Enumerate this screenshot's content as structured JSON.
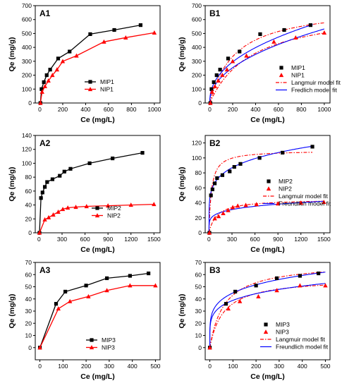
{
  "chart_data": [
    {
      "type": "line",
      "panel_label": "A1",
      "xlabel": "Ce (mg/L)",
      "ylabel": "Qe (mg/g)",
      "xlim": [
        -40,
        1050
      ],
      "ylim": [
        0,
        700
      ],
      "xticks": [
        0,
        200,
        400,
        600,
        800,
        1000
      ],
      "yticks": [
        0,
        100,
        200,
        300,
        400,
        500,
        600,
        700
      ],
      "series": [
        {
          "name": "MIP1",
          "color": "#000000",
          "marker": "square",
          "x": [
            5,
            15,
            35,
            60,
            90,
            160,
            260,
            440,
            650,
            880
          ],
          "y": [
            0,
            100,
            150,
            200,
            240,
            320,
            370,
            495,
            525,
            560
          ]
        },
        {
          "name": "NIP1",
          "color": "#ff0000",
          "marker": "triangle",
          "x": [
            5,
            20,
            45,
            75,
            110,
            150,
            200,
            320,
            560,
            750,
            1000
          ],
          "y": [
            0,
            80,
            120,
            160,
            200,
            240,
            300,
            340,
            440,
            470,
            505
          ]
        }
      ],
      "legend": {
        "position": "right"
      }
    },
    {
      "type": "scatter",
      "panel_label": "B1",
      "xlabel": "Ce (mg/L)",
      "ylabel": "Qe (mg/g)",
      "xlim": [
        -40,
        1050
      ],
      "ylim": [
        0,
        700
      ],
      "xticks": [
        0,
        200,
        400,
        600,
        800,
        1000
      ],
      "yticks": [
        0,
        100,
        200,
        300,
        400,
        500,
        600,
        700
      ],
      "series": [
        {
          "name": "MIP1",
          "color": "#000000",
          "marker": "square",
          "x": [
            5,
            15,
            35,
            60,
            90,
            160,
            260,
            440,
            650,
            880
          ],
          "y": [
            0,
            100,
            150,
            200,
            240,
            320,
            370,
            495,
            525,
            560
          ]
        },
        {
          "name": "NIP1",
          "color": "#ff0000",
          "marker": "triangle",
          "x": [
            5,
            20,
            45,
            75,
            110,
            150,
            200,
            320,
            560,
            750,
            1000
          ],
          "y": [
            0,
            80,
            120,
            160,
            200,
            240,
            300,
            340,
            440,
            470,
            505
          ]
        }
      ],
      "fits": [
        {
          "name": "Langmuir model fit",
          "color": "#ff0000",
          "style": "dashdot",
          "model": "langmuir",
          "qmax": 705,
          "k": 0.0045,
          "xmax": 1000
        },
        {
          "name": "",
          "color": "#ff0000",
          "style": "dashdot",
          "model": "langmuir",
          "qmax": 690,
          "k": 0.0027,
          "xmax": 1000
        },
        {
          "name": "Fredlich model fit",
          "color": "#0000ff",
          "style": "solid",
          "model": "freundlich",
          "kf": 30.3,
          "n": 0.43,
          "xmax": 900
        },
        {
          "name": "",
          "color": "#0000ff",
          "style": "solid",
          "model": "freundlich",
          "kf": 22.2,
          "n": 0.46,
          "xmax": 1000
        }
      ],
      "legend": {
        "position": "bottom-right"
      }
    },
    {
      "type": "line",
      "panel_label": "A2",
      "xlabel": "Ce (mg/L)",
      "ylabel": "Qe (mg/g)",
      "xlim": [
        -50,
        1580
      ],
      "ylim": [
        0,
        140
      ],
      "xticks": [
        0,
        300,
        600,
        900,
        1200,
        1500
      ],
      "yticks": [
        0,
        20,
        40,
        60,
        80,
        100,
        120,
        140
      ],
      "series": [
        {
          "name": "MIP2",
          "color": "#000000",
          "marker": "square",
          "x": [
            5,
            25,
            45,
            75,
            105,
            175,
            270,
            330,
            410,
            660,
            960,
            1350
          ],
          "y": [
            0,
            50,
            58,
            66,
            73,
            77,
            82,
            88,
            92,
            100,
            107,
            115
          ]
        },
        {
          "name": "NIP2",
          "color": "#ff0000",
          "marker": "triangle",
          "x": [
            5,
            75,
            125,
            185,
            250,
            310,
            375,
            480,
            620,
            900,
            1200,
            1500
          ],
          "y": [
            0,
            19,
            22,
            26,
            30,
            34,
            36,
            37,
            38,
            39,
            40,
            41
          ]
        }
      ],
      "legend": {
        "position": "right"
      }
    },
    {
      "type": "scatter",
      "panel_label": "B2",
      "xlabel": "Ce (mg/L)",
      "ylabel": "Qe (mg/g)",
      "xlim": [
        -50,
        1580
      ],
      "ylim": [
        0,
        130
      ],
      "xticks": [
        0,
        300,
        600,
        900,
        1200,
        1500
      ],
      "yticks": [
        0,
        20,
        40,
        60,
        80,
        100,
        120
      ],
      "series": [
        {
          "name": "MIP2",
          "color": "#000000",
          "marker": "square",
          "x": [
            5,
            25,
            45,
            75,
            105,
            175,
            270,
            330,
            410,
            660,
            960,
            1350
          ],
          "y": [
            0,
            50,
            58,
            66,
            73,
            77,
            82,
            88,
            92,
            100,
            107,
            115
          ]
        },
        {
          "name": "NIP2",
          "color": "#ff0000",
          "marker": "triangle",
          "x": [
            5,
            75,
            125,
            185,
            250,
            310,
            375,
            480,
            620,
            900,
            1200,
            1500
          ],
          "y": [
            0,
            19,
            22,
            26,
            30,
            34,
            36,
            37,
            38,
            39,
            40,
            41
          ]
        }
      ],
      "fits": [
        {
          "name": "Langmuir model fit",
          "color": "#ff0000",
          "style": "dashdot",
          "model": "langmuir",
          "qmax": 110,
          "k": 0.032,
          "xmax": 1350
        },
        {
          "name": "",
          "color": "#ff0000",
          "style": "dashdot",
          "model": "langmuir",
          "qmax": 45,
          "k": 0.01,
          "xmax": 1500
        },
        {
          "name": "Freundlich model fit",
          "color": "#0000ff",
          "style": "solid",
          "model": "freundlich",
          "kf": 29.4,
          "n": 0.19,
          "xmax": 1350
        },
        {
          "name": "",
          "color": "#0000ff",
          "style": "solid",
          "model": "freundlich",
          "kf": 10.5,
          "n": 0.19,
          "xmax": 1500
        }
      ],
      "legend": {
        "position": "center-right"
      }
    },
    {
      "type": "line",
      "panel_label": "A3",
      "xlabel": "Ce (mg/L)",
      "ylabel": "Qe (mg/g)",
      "xlim": [
        -20,
        520
      ],
      "ylim": [
        -10,
        70
      ],
      "xticks": [
        0,
        100,
        200,
        300,
        400,
        500
      ],
      "yticks": [
        0,
        10,
        20,
        30,
        40,
        50,
        60,
        70
      ],
      "series": [
        {
          "name": "MIP3",
          "color": "#000000",
          "marker": "square",
          "x": [
            0,
            70,
            110,
            200,
            290,
            390,
            470
          ],
          "y": [
            0,
            36,
            46,
            51,
            57,
            59,
            61
          ]
        },
        {
          "name": "NIP3",
          "color": "#ff0000",
          "marker": "triangle",
          "x": [
            0,
            80,
            130,
            210,
            290,
            390,
            500
          ],
          "y": [
            0,
            32,
            38,
            42,
            47,
            51,
            51
          ]
        }
      ],
      "legend": {
        "position": "bottom-right"
      }
    },
    {
      "type": "scatter",
      "panel_label": "B3",
      "xlabel": "Ce (mg/L)",
      "ylabel": "Qe (mg/g)",
      "xlim": [
        -20,
        520
      ],
      "ylim": [
        -10,
        70
      ],
      "xticks": [
        0,
        100,
        200,
        300,
        400,
        500
      ],
      "yticks": [
        0,
        10,
        20,
        30,
        40,
        50,
        60,
        70
      ],
      "series": [
        {
          "name": "MIP3",
          "color": "#000000",
          "marker": "square",
          "x": [
            0,
            70,
            110,
            200,
            290,
            390,
            470
          ],
          "y": [
            0,
            36,
            46,
            51,
            57,
            59,
            61
          ]
        },
        {
          "name": "NIP3",
          "color": "#ff0000",
          "marker": "triangle",
          "x": [
            0,
            80,
            130,
            210,
            290,
            390,
            500
          ],
          "y": [
            0,
            32,
            38,
            42,
            47,
            51,
            51
          ]
        }
      ],
      "fits": [
        {
          "name": "Langmuir model fit",
          "color": "#ff0000",
          "style": "dashdot",
          "model": "langmuir",
          "qmax": 70,
          "k": 0.016,
          "xmax": 500
        },
        {
          "name": "",
          "color": "#ff0000",
          "style": "dashdot",
          "model": "langmuir",
          "qmax": 57.5,
          "k": 0.017,
          "xmax": 500
        },
        {
          "name": "Freundlich model fit",
          "color": "#0000ff",
          "style": "solid",
          "model": "freundlich",
          "kf": 17.9,
          "n": 0.2,
          "xmax": 500
        },
        {
          "name": "",
          "color": "#0000ff",
          "style": "solid",
          "model": "freundlich",
          "kf": 16.2,
          "n": 0.19,
          "xmax": 500
        }
      ],
      "legend": {
        "position": "bottom-right"
      }
    }
  ]
}
